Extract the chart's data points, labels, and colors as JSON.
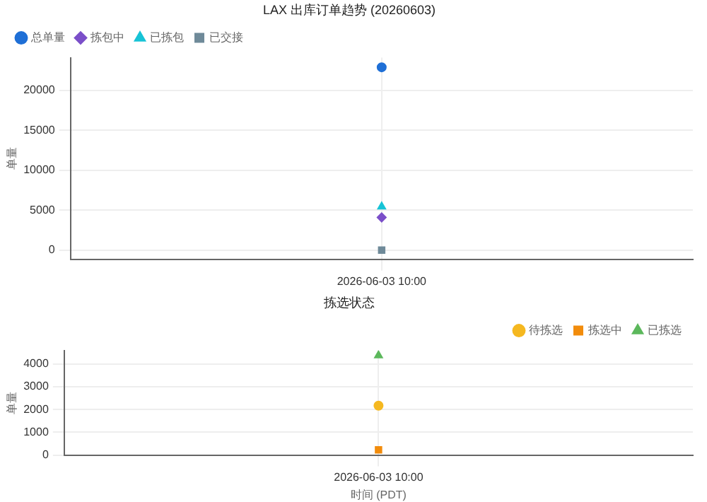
{
  "chart_data": [
    {
      "type": "line",
      "title": "LAX 出库订单趋势 (20260603)",
      "ylabel": "单量",
      "categories": [
        "2026-06-03 10:00"
      ],
      "ylim": [
        -1150,
        24100
      ],
      "yticks": [
        0,
        5000,
        10000,
        15000,
        20000
      ],
      "grid": true,
      "legend": "top left",
      "series": [
        {
          "name": "总单量",
          "color": "#1f6fd6",
          "values": [
            22900
          ],
          "marker": "circle"
        },
        {
          "name": "拣包中",
          "color": "#7b4fc9",
          "values": [
            4100
          ],
          "marker": "diamond"
        },
        {
          "name": "已拣包",
          "color": "#17c3d6",
          "values": [
            5450
          ],
          "marker": "triangle"
        },
        {
          "name": "已交接",
          "color": "#6f8a99",
          "values": [
            0
          ],
          "marker": "square"
        }
      ]
    },
    {
      "type": "line",
      "title": "拣选状态",
      "ylabel": "单量",
      "xlabel": "时间 (PDT)",
      "categories": [
        "2026-06-03 10:00"
      ],
      "ylim": [
        0,
        4600
      ],
      "yticks": [
        0,
        1000,
        2000,
        3000,
        4000
      ],
      "grid": true,
      "legend": "top right",
      "series": [
        {
          "name": "待拣选",
          "color": "#f5b820",
          "values": [
            2170
          ],
          "marker": "circle"
        },
        {
          "name": "拣选中",
          "color": "#f28c0c",
          "values": [
            230
          ],
          "marker": "square"
        },
        {
          "name": "已拣选",
          "color": "#5cb85c",
          "values": [
            4380
          ],
          "marker": "triangle"
        }
      ]
    }
  ]
}
